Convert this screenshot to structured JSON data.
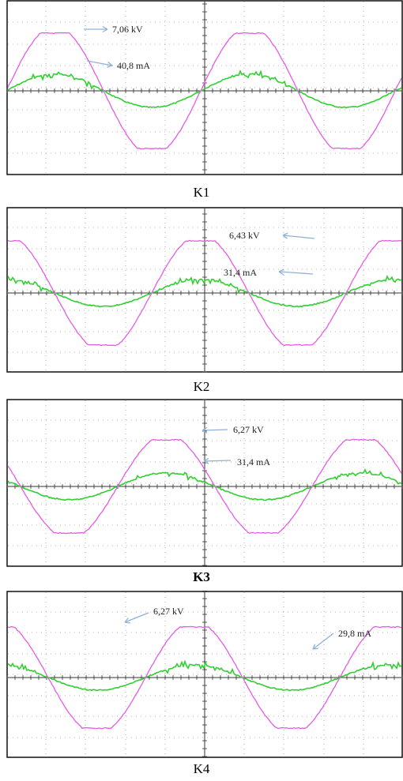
{
  "colors": {
    "voltage": "#e55be5",
    "current": "#2fd02f",
    "arrow": "#8fb1d8",
    "axis": "#333333",
    "grid": "#777777"
  },
  "chart_data": [
    {
      "type": "line",
      "caption": "K1",
      "caption_bold": false,
      "series": [
        {
          "amplitude": 7.06,
          "unit": "kV",
          "phase_deg": 0,
          "label": "7,06 kV"
        },
        {
          "amplitude": 40.8,
          "unit": "mA",
          "phase_deg": 0,
          "label": "40,8 mA"
        }
      ],
      "periods_shown": 2
    },
    {
      "type": "line",
      "caption": "K2",
      "caption_bold": false,
      "series": [
        {
          "amplitude": 6.43,
          "unit": "kV",
          "phase_deg": -30,
          "label": "6,43 kV"
        },
        {
          "amplitude": 31.4,
          "unit": "mA",
          "phase_deg": -30,
          "label": "31,4 mA"
        }
      ],
      "periods_shown": 2
    },
    {
      "type": "line",
      "caption": "K3",
      "caption_bold": true,
      "series": [
        {
          "amplitude": 6.27,
          "unit": "kV",
          "phase_deg": -60,
          "label": "6,27 kV"
        },
        {
          "amplitude": 31.4,
          "unit": "mA",
          "phase_deg": -60,
          "label": "31,4 mA"
        }
      ],
      "periods_shown": 2
    },
    {
      "type": "line",
      "caption": "K4",
      "caption_bold": false,
      "series": [
        {
          "amplitude": 6.27,
          "unit": "kV",
          "phase_deg": 0,
          "label": "6,27 kV"
        },
        {
          "amplitude": 29.8,
          "unit": "mA",
          "phase_deg": 0,
          "label": "29,8 mA"
        }
      ],
      "periods_shown": 2
    }
  ]
}
